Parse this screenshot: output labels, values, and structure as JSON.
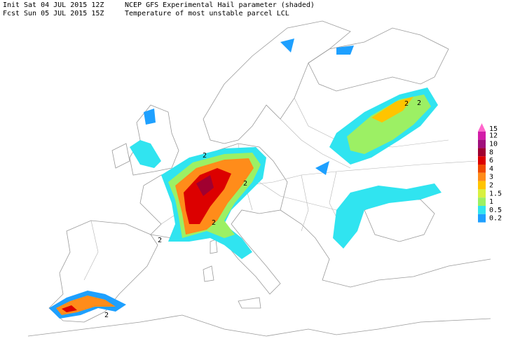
{
  "header": {
    "init_label": "Init",
    "init_time": "Sat 04 JUL 2015 12Z",
    "title": "NCEP GFS Experimental Hail parameter (shaded)",
    "fcst_label": "Fcst",
    "fcst_time": "Sun 05 JUL 2015 15Z",
    "subtitle": "Temperature of most unstable parcel LCL"
  },
  "legend": {
    "levels": [
      {
        "value": 15,
        "color": "#ff66cc"
      },
      {
        "value": 12,
        "color": "#d21ca8"
      },
      {
        "value": 10,
        "color": "#a0107c"
      },
      {
        "value": 8,
        "color": "#a00030"
      },
      {
        "value": 6,
        "color": "#dc0000"
      },
      {
        "value": 4,
        "color": "#f04a00"
      },
      {
        "value": 3,
        "color": "#ff8c1a"
      },
      {
        "value": 2,
        "color": "#ffc400"
      },
      {
        "value": 1.5,
        "color": "#d8f040"
      },
      {
        "value": 1,
        "color": "#9cf064"
      },
      {
        "value": 0.5,
        "color": "#30e4f0"
      },
      {
        "value": 0.2,
        "color": "#1ea0ff"
      }
    ]
  },
  "contour_labels": [
    "2",
    "2",
    "2",
    "2",
    "2",
    "2",
    "2"
  ]
}
